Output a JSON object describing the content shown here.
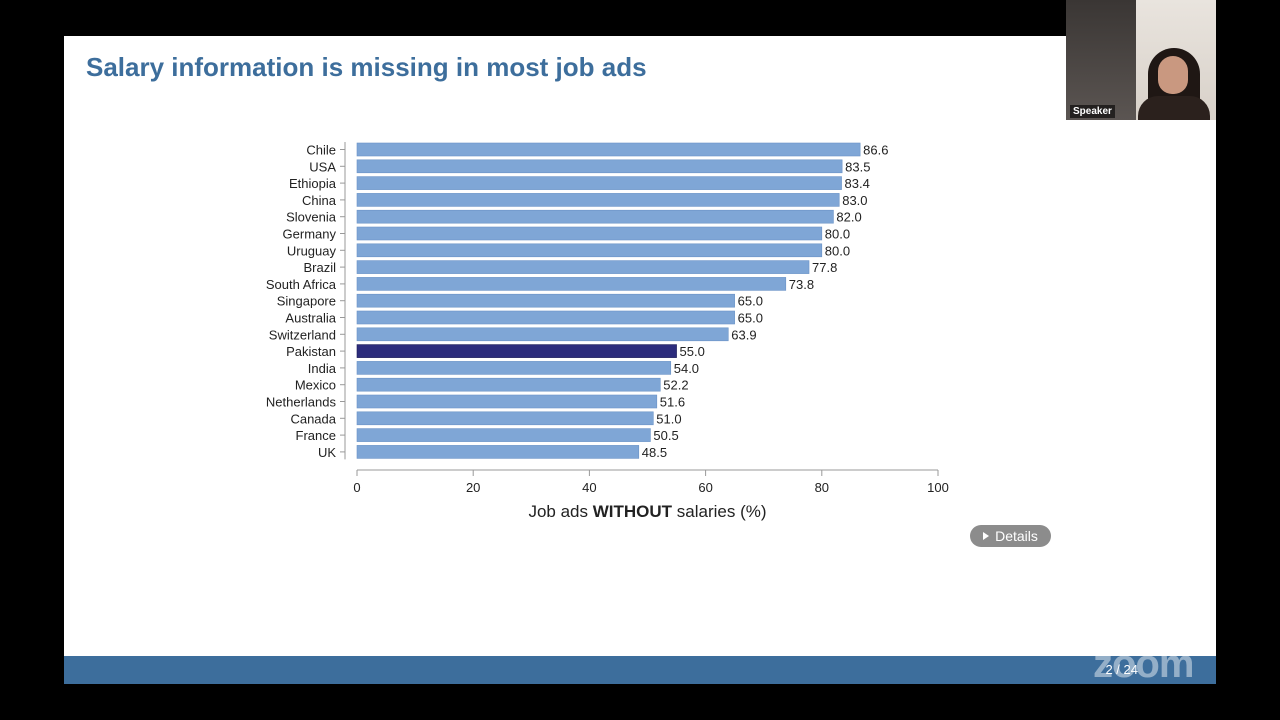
{
  "slide": {
    "title": "Salary information is missing in most job ads",
    "details_label": "Details",
    "page_number": "2 / 24"
  },
  "meeting": {
    "speaker_name": "Speaker",
    "watermark": "zoom"
  },
  "colors": {
    "bar": "#7fa6d6",
    "highlight_bar": "#2c2c7c",
    "title": "#3d6e9c",
    "footer": "#3d6e9c"
  },
  "chart_data": {
    "type": "bar",
    "orientation": "horizontal",
    "title": "",
    "categories": [
      "Chile",
      "USA",
      "Ethiopia",
      "China",
      "Slovenia",
      "Germany",
      "Uruguay",
      "Brazil",
      "South Africa",
      "Singapore",
      "Australia",
      "Switzerland",
      "Pakistan",
      "India",
      "Mexico",
      "Netherlands",
      "Canada",
      "France",
      "UK"
    ],
    "values": [
      86.6,
      83.5,
      83.4,
      83.0,
      82.0,
      80.0,
      80.0,
      77.8,
      73.8,
      65.0,
      65.0,
      63.9,
      55.0,
      54.0,
      52.2,
      51.6,
      51.0,
      50.5,
      48.5
    ],
    "value_labels": [
      "86.6",
      "83.5",
      "83.4",
      "83.0",
      "82.0",
      "80.0",
      "80.0",
      "77.8",
      "73.8",
      "65.0",
      "65.0",
      "63.9",
      "55.0",
      "54.0",
      "52.2",
      "51.6",
      "51.0",
      "50.5",
      "48.5"
    ],
    "highlight": "Pakistan",
    "xlabel_prefix": "Job ads ",
    "xlabel_bold": "WITHOUT",
    "xlabel_suffix": " salaries (%)",
    "xlim": [
      0,
      100
    ],
    "xticks": [
      0,
      20,
      40,
      60,
      80,
      100
    ],
    "grid": false,
    "legend": "none"
  }
}
